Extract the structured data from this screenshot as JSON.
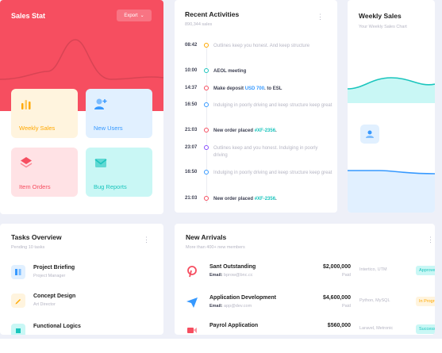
{
  "sales_stat": {
    "title": "Sales Stat",
    "export_label": "Export",
    "tiles": [
      {
        "label": "Weekly Sales",
        "icon": "bar-chart-icon",
        "color": "#ffa800"
      },
      {
        "label": "New Users",
        "icon": "add-user-icon",
        "color": "#3699ff"
      },
      {
        "label": "Item Orders",
        "icon": "layers-icon",
        "color": "#f64e60"
      },
      {
        "label": "Bug Reports",
        "icon": "mail-icon",
        "color": "#1bc5bd"
      }
    ]
  },
  "recent_activities": {
    "title": "Recent Activities",
    "subtitle": "890,344 sales",
    "items": [
      {
        "time": "08:42",
        "text": "Outlines keep you honest. And keep structure",
        "style": "soft",
        "dot": "#ffa800"
      },
      {
        "time": "10:00",
        "text": "AEOL meeting",
        "style": "bold",
        "dot": "#1bc5bd"
      },
      {
        "time": "14:37",
        "text_prefix": "Make deposit ",
        "link": "USD 700",
        "text_suffix": ". to ESL",
        "style": "bold",
        "dot": "#f64e60"
      },
      {
        "time": "16:50",
        "text": "Indulging in poorly driving and keep structure keep great",
        "style": "soft",
        "dot": "#3699ff"
      },
      {
        "time": "21:03",
        "text_prefix": "New order placed ",
        "link": "#XF-2356",
        "text_suffix": ".",
        "style": "bold",
        "dot": "#f64e60"
      },
      {
        "time": "23:07",
        "text": "Outlines keep and you honest. Indulging in poorly driving",
        "style": "soft",
        "dot": "#8950fc"
      },
      {
        "time": "16:50",
        "text": "Indulging in poorly driving and keep structure keep great",
        "style": "soft",
        "dot": "#3699ff"
      },
      {
        "time": "21:03",
        "text_prefix": "New order placed ",
        "link": "#XF-2356",
        "text_suffix": ".",
        "style": "bold",
        "dot": "#f64e60"
      }
    ]
  },
  "weekly_sales": {
    "title": "Weekly Sales",
    "subtitle": "Your Weekly Sales Chart",
    "icon": "users-icon"
  },
  "tasks": {
    "title": "Tasks Overview",
    "subtitle": "Pending 10 tasks",
    "items": [
      {
        "title": "Project Briefing",
        "sub": "Project Manager",
        "icon": "book-icon",
        "bg": "#e1f0ff",
        "fg": "#3699ff"
      },
      {
        "title": "Concept Design",
        "sub": "Art Director",
        "icon": "pen-icon",
        "bg": "#fff4de",
        "fg": "#ffa800"
      },
      {
        "title": "Functional Logics",
        "sub": "",
        "icon": "code-icon",
        "bg": "#c9f7f5",
        "fg": "#1bc5bd"
      }
    ]
  },
  "new_arrivals": {
    "title": "New Arrivals",
    "subtitle": "More than 400+ new members",
    "rows": [
      {
        "name": "Sant Outstanding",
        "email_label": "Email:",
        "email": "bprow@bnc.cc",
        "amount": "$2,000,000",
        "status": "Paid",
        "company": "Intertico, UTM",
        "badge": "Approved",
        "badge_class": "b-approved",
        "icon": "pinterest-icon",
        "icon_color": "#f64e60"
      },
      {
        "name": "Application Development",
        "email_label": "Email:",
        "email": "app@dev.com",
        "amount": "$4,600,000",
        "status": "Paid",
        "company": "Python, MySQL",
        "badge": "In Progress",
        "badge_class": "b-progress",
        "icon": "paper-plane-icon",
        "icon_color": "#3699ff"
      },
      {
        "name": "Payrol Application",
        "email_label": "",
        "email": "",
        "amount": "$560,000",
        "status": "",
        "company": "Laravel, Metronic",
        "badge": "Success",
        "badge_class": "b-success",
        "icon": "video-icon",
        "icon_color": "#f64e60"
      }
    ]
  }
}
